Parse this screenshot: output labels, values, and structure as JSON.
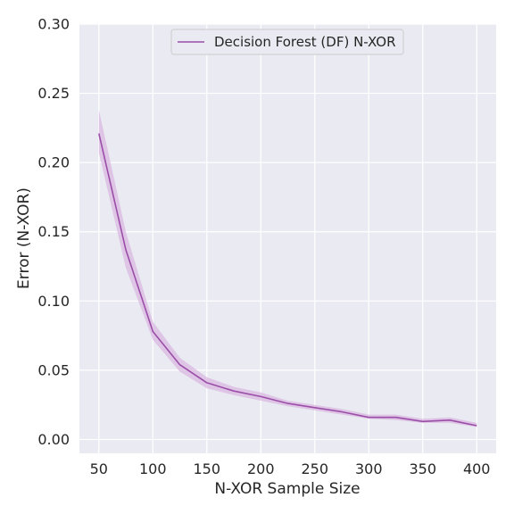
{
  "chart_data": {
    "type": "line",
    "title": "",
    "xlabel": "N-XOR Sample Size",
    "ylabel": "Error (N-XOR)",
    "xlim": [
      32,
      418
    ],
    "ylim": [
      -0.01,
      0.3
    ],
    "xticks": [
      50,
      100,
      150,
      200,
      250,
      300,
      350,
      400
    ],
    "xtick_labels": [
      "50",
      "100",
      "150",
      "200",
      "250",
      "300",
      "350",
      "400"
    ],
    "yticks": [
      0.0,
      0.05,
      0.1,
      0.15,
      0.2,
      0.25,
      0.3
    ],
    "ytick_labels": [
      "0.00",
      "0.05",
      "0.10",
      "0.15",
      "0.20",
      "0.25",
      "0.30"
    ],
    "grid": true,
    "legend_position": "top-center",
    "background_color": "#eaeaf2",
    "series": [
      {
        "name": "Decision Forest (DF) N-XOR",
        "color": "#9b4ea8",
        "band_color": "#d9b8e0",
        "x": [
          50,
          75,
          100,
          125,
          150,
          175,
          200,
          225,
          250,
          275,
          300,
          325,
          350,
          375,
          400
        ],
        "y": [
          0.221,
          0.137,
          0.078,
          0.054,
          0.041,
          0.035,
          0.031,
          0.026,
          0.023,
          0.02,
          0.016,
          0.016,
          0.013,
          0.014,
          0.01
        ],
        "y_lower": [
          0.207,
          0.124,
          0.072,
          0.049,
          0.037,
          0.032,
          0.028,
          0.024,
          0.021,
          0.018,
          0.015,
          0.014,
          0.012,
          0.012,
          0.009
        ],
        "y_upper": [
          0.238,
          0.15,
          0.085,
          0.059,
          0.045,
          0.038,
          0.034,
          0.028,
          0.025,
          0.022,
          0.018,
          0.018,
          0.015,
          0.016,
          0.012
        ]
      }
    ]
  }
}
